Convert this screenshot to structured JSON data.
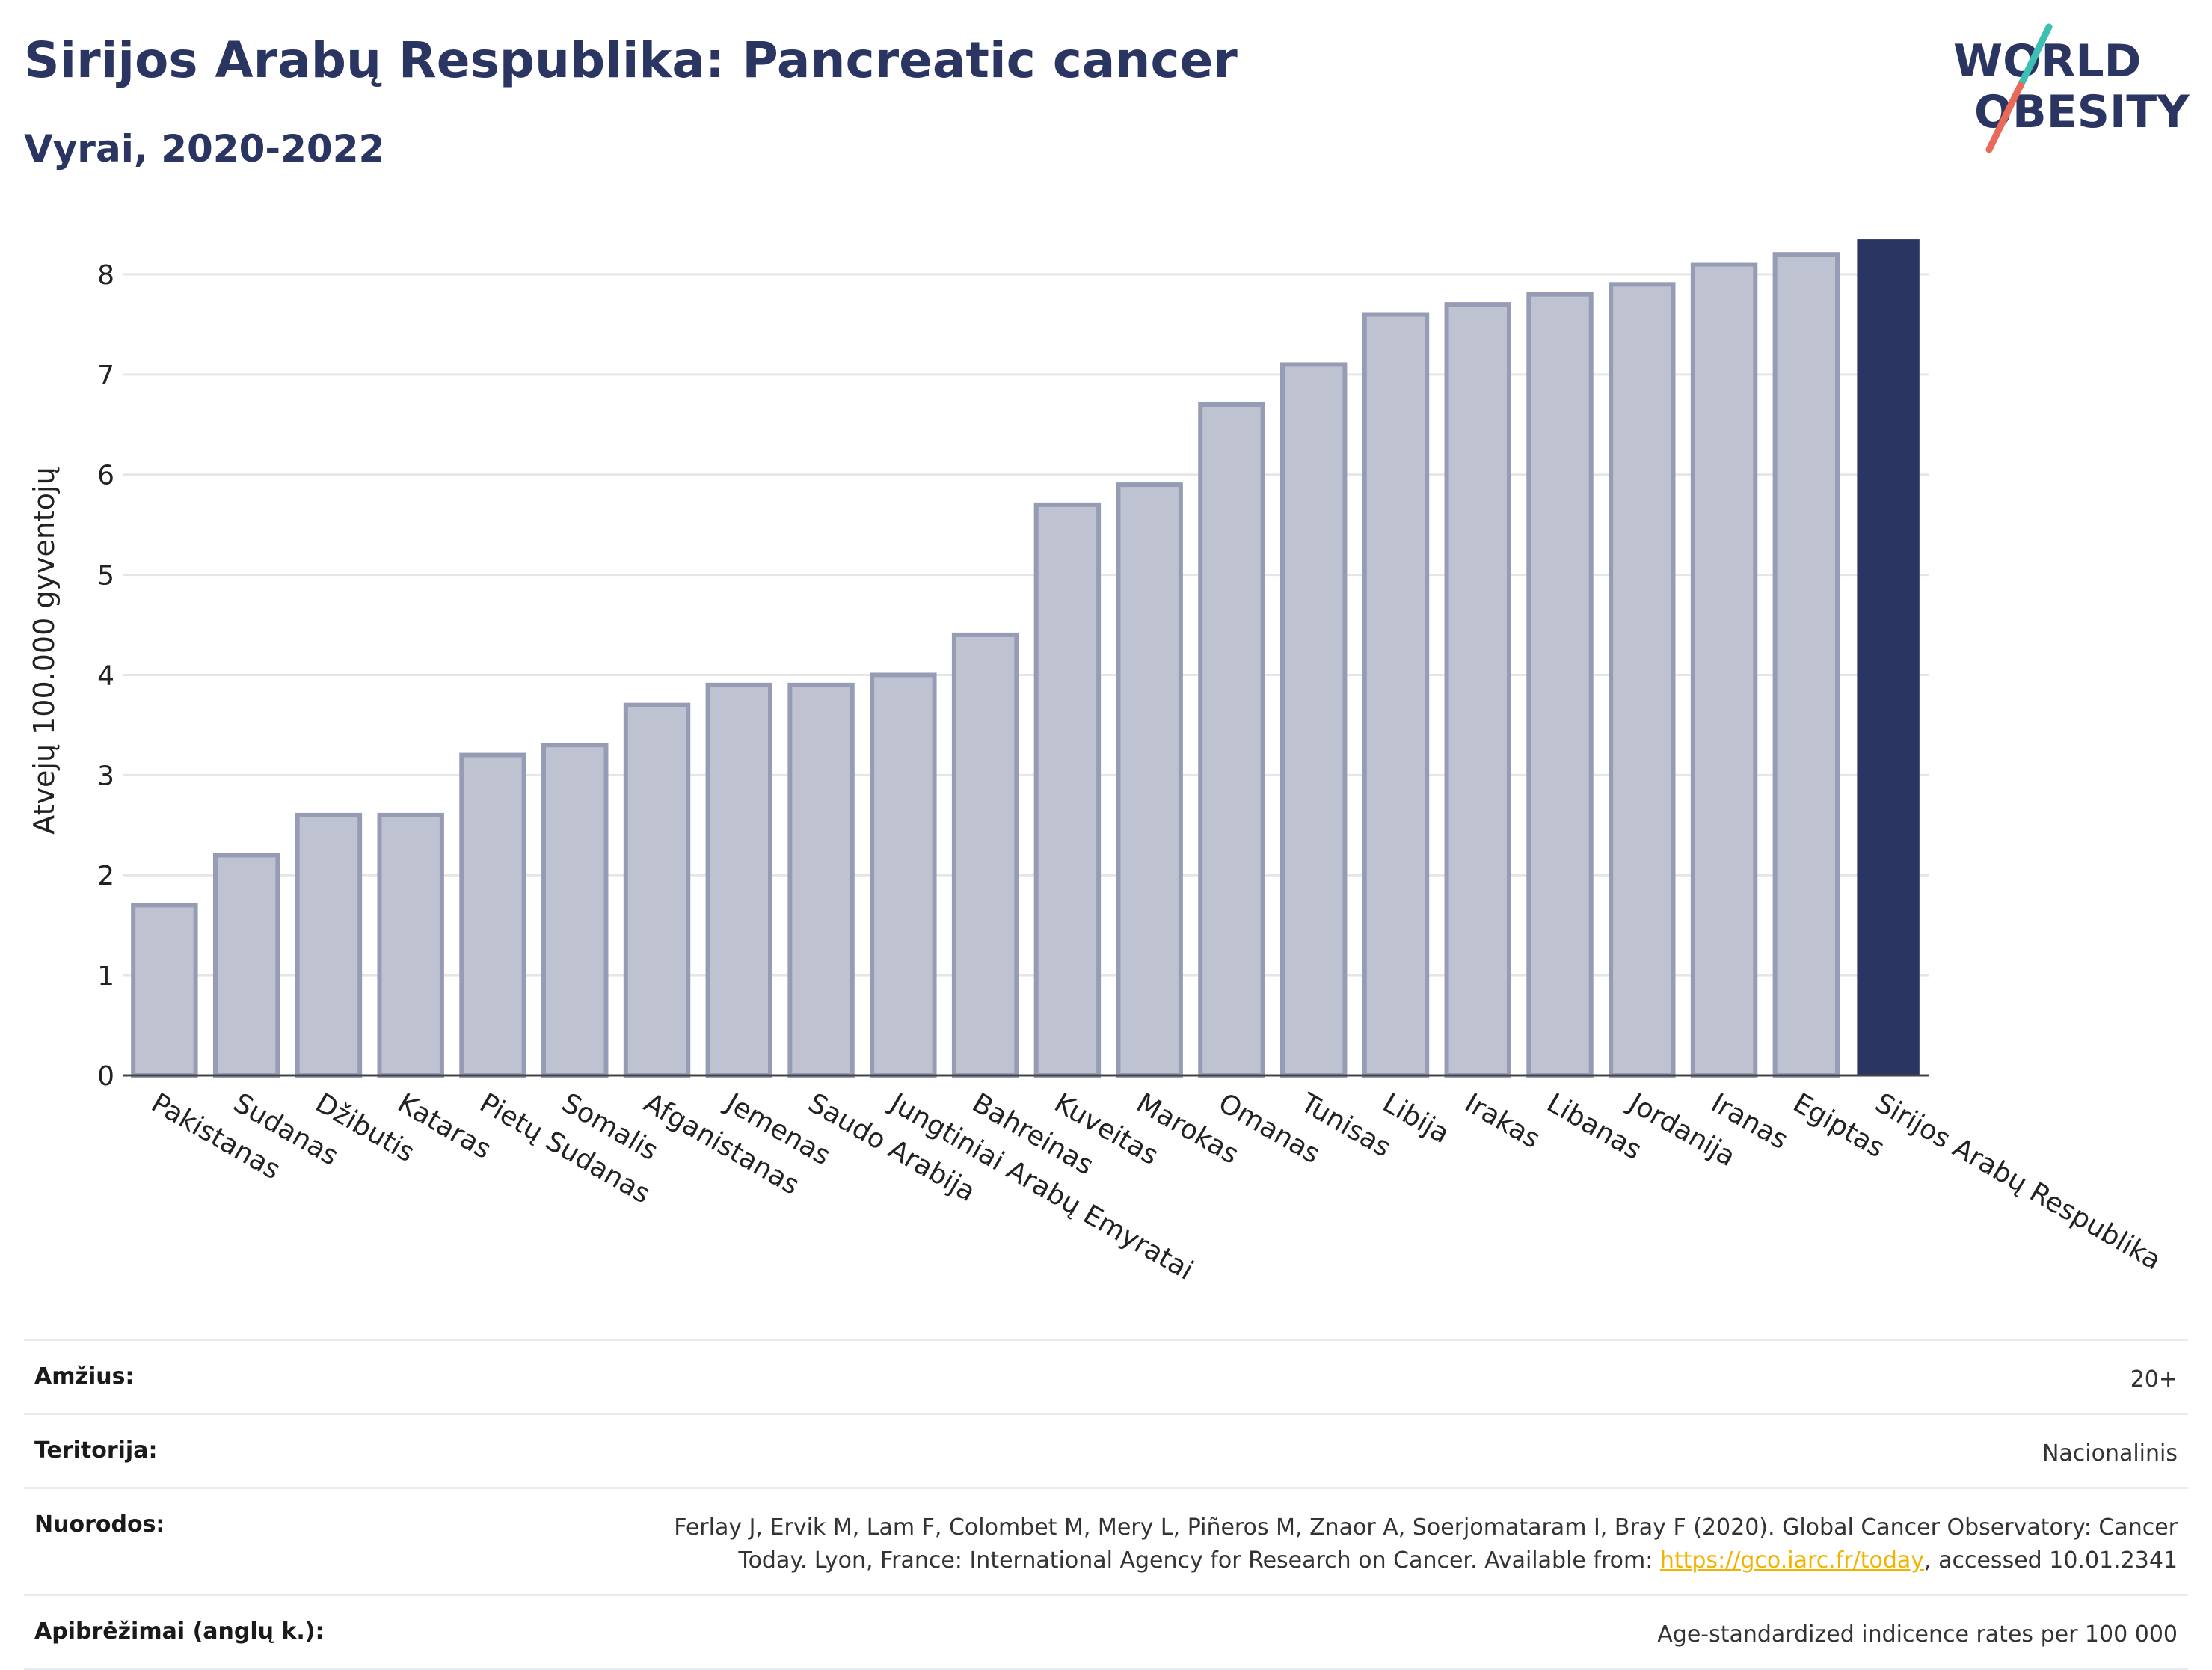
{
  "header": {
    "title": "Sirijos Arabų Respublika: Pancreatic cancer",
    "subtitle": "Vyrai, 2020-2022"
  },
  "logo": {
    "line1": "WORLD",
    "line2": "OBESITY",
    "accent_teal": "#3dbfb3",
    "accent_red": "#ea6a5a",
    "text_color": "#2b3561"
  },
  "colors": {
    "bar": "#bfc3d1",
    "bar_stroke": "#979cb5",
    "highlight": "#2b3561",
    "grid": "#e6e6e6"
  },
  "chart_data": {
    "type": "bar",
    "ylabel": "Atvejų 100.000 gyventojų",
    "ylim": [
      0,
      8.5
    ],
    "yticks": [
      0,
      1,
      2,
      3,
      4,
      5,
      6,
      7,
      8
    ],
    "grid": true,
    "categories": [
      "Pakistanas",
      "Sudanas",
      "Džibutis",
      "Kataras",
      "Pietų Sudanas",
      "Somalis",
      "Afganistanas",
      "Jemenas",
      "Saudo Arabija",
      "Jungtiniai Arabų Emyratai",
      "Bahreinas",
      "Kuveitas",
      "Marokas",
      "Omanas",
      "Tunisas",
      "Libija",
      "Irakas",
      "Libanas",
      "Jordanija",
      "Iranas",
      "Egiptas",
      "Sirijos Arabų Respublika"
    ],
    "values": [
      1.7,
      2.2,
      2.6,
      2.6,
      3.2,
      3.3,
      3.7,
      3.9,
      3.9,
      4.0,
      4.4,
      5.7,
      5.9,
      6.7,
      7.1,
      7.6,
      7.7,
      7.8,
      7.9,
      8.1,
      8.2,
      8.35
    ],
    "highlight": "Sirijos Arabų Respublika"
  },
  "meta": {
    "age_label": "Amžius:",
    "age_value": "20+",
    "territory_label": "Teritorija:",
    "territory_value": "Nacionalinis",
    "refs_label": "Nuorodos:",
    "refs_line1": "Ferlay J, Ervik M, Lam F, Colombet M, Mery L, Piñeros M, Znaor A, Soerjomataram I, Bray F (2020). Global Cancer Observatory: Cancer",
    "refs_line2_pre": "Today. Lyon, France: International Agency for Research on Cancer. Available from: ",
    "refs_link": "https://gco.iarc.fr/today",
    "refs_line2_post": ", accessed 10.01.2341",
    "def_label": "Apibrėžimai (anglų k.):",
    "def_value": "Age-standardized indicence rates per 100 000"
  }
}
